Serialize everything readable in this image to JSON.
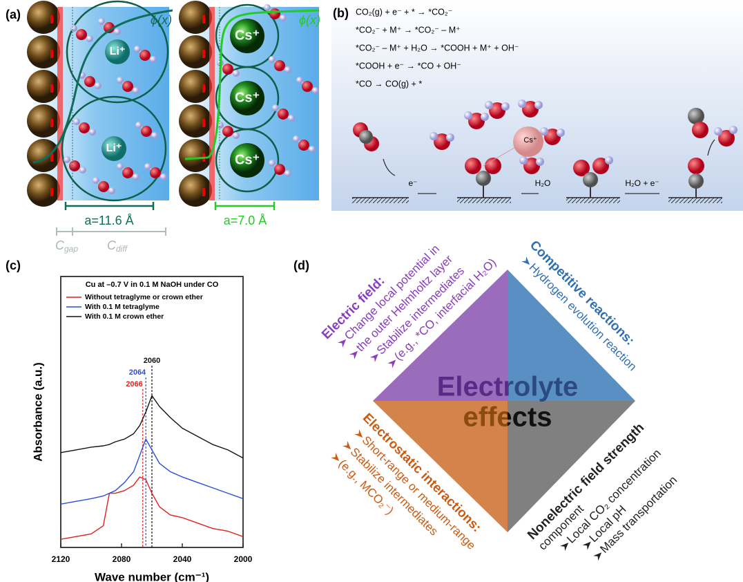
{
  "panel_a": {
    "label": "(a)",
    "phi": "ϕ(x)",
    "ion_left": "Li⁺",
    "ion_right": "Cs⁺",
    "a_left": "a=11.6 Å",
    "a_right": "a=7.0 Å",
    "c_gap": [
      "C",
      "gap"
    ],
    "c_diff": [
      "C",
      "diff"
    ]
  },
  "panel_b": {
    "label": "(b)",
    "equations": [
      "CO₂(g) + e⁻ + * → *CO₂⁻",
      "*CO₂⁻ + M⁺ → *CO₂⁻ – M⁺",
      "*CO₂⁻ – M⁺ + H₂O → *COOH + M⁺ + OH⁻",
      "*COOH + e⁻ → *CO + OH⁻",
      "*CO → CO(g) + *"
    ],
    "cation": "Cs⁺",
    "step1": "e⁻",
    "step2": "H₂O",
    "step3": "H₂O + e⁻"
  },
  "chart_data": {
    "type": "line",
    "label": "(c)",
    "title": "Cu at –0.7 V in 0.1 M NaOH under CO",
    "x_label": "Wave number (cm⁻¹)",
    "y_label": "Absorbance (a.u.)",
    "x": [
      2120,
      2110,
      2100,
      2092,
      2088,
      2084,
      2078,
      2072,
      2068,
      2064,
      2060,
      2055,
      2048,
      2040,
      2030,
      2020,
      2010,
      2000
    ],
    "series": [
      {
        "name": "Without tetraglyme or crown ether",
        "color": "#e02020",
        "values": [
          0.03,
          0.04,
          0.05,
          0.08,
          0.2,
          0.2,
          0.21,
          0.23,
          0.26,
          0.25,
          0.2,
          0.15,
          0.12,
          0.11,
          0.09,
          0.07,
          0.06,
          0.04
        ]
      },
      {
        "name": "With 0.1 M tetraglyme",
        "color": "#2a4fd6",
        "values": [
          0.16,
          0.17,
          0.18,
          0.19,
          0.2,
          0.21,
          0.24,
          0.28,
          0.34,
          0.4,
          0.36,
          0.31,
          0.28,
          0.26,
          0.24,
          0.22,
          0.2,
          0.18
        ]
      },
      {
        "name": "With 0.1 M crown ether",
        "color": "#111111",
        "values": [
          0.35,
          0.36,
          0.37,
          0.375,
          0.38,
          0.39,
          0.4,
          0.42,
          0.45,
          0.5,
          0.56,
          0.52,
          0.48,
          0.44,
          0.41,
          0.38,
          0.36,
          0.33
        ]
      }
    ],
    "peaks": [
      {
        "value": 2060,
        "color": "#111111"
      },
      {
        "value": 2064,
        "color": "#2a4fd6"
      },
      {
        "value": 2066,
        "color": "#e02020"
      }
    ],
    "xlim": [
      2120,
      2000
    ],
    "xticks": [
      2120,
      2080,
      2040,
      2000
    ],
    "ylim": [
      0,
      1
    ],
    "legend": "upper left"
  },
  "panel_d": {
    "label": "(d)",
    "center": [
      "Electrolyte",
      "effects"
    ],
    "electric": {
      "title": "Electric field:",
      "items": [
        "Change local potential in",
        "the outer Helmholtz layer",
        "Stabilize intermediates",
        "(e.g., *CO, interfacial H₂O)"
      ]
    },
    "competitive": {
      "title": "Competitive reactions:",
      "items": [
        "Hydrogen evolution reaction"
      ]
    },
    "electrostatic": {
      "title": "Electrostatic interactions:",
      "items": [
        "Short-range or medium-range",
        "Stabilize intermediates",
        "(e.g., MCO₂⁻)"
      ]
    },
    "nonelectric": {
      "title": "Nonelectric field strength",
      "items": [
        "component",
        "Local CO₂ concentration",
        "Local pH",
        "Mass transportation"
      ]
    }
  }
}
